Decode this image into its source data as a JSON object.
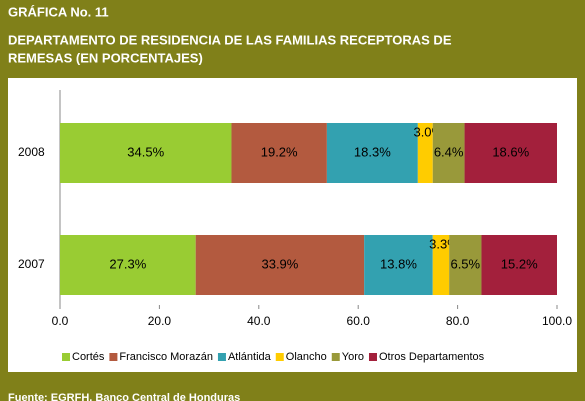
{
  "chart_data": {
    "type": "stacked_bar_horizontal",
    "title_lines": [
      "GRÁFICA No. 11",
      "DEPARTAMENTO DE RESIDENCIA DE LAS FAMILIAS RECEPTORAS DE",
      "REMESAS (EN PORCENTAJES)"
    ],
    "source": "Fuente: EGRFH, Banco Central de Honduras",
    "categories": [
      "2008",
      "2007"
    ],
    "series": [
      {
        "name": "Cortés",
        "color": "#99cc33",
        "values": [
          34.5,
          27.3
        ],
        "value_labels": [
          "34.5%",
          "27.3%"
        ]
      },
      {
        "name": "Francisco Morazán",
        "color": "#b35a3f",
        "values": [
          19.2,
          33.9
        ],
        "value_labels": [
          "19.2%",
          "33.9%"
        ]
      },
      {
        "name": "Atlántida",
        "color": "#33a1b0",
        "values": [
          18.3,
          13.8
        ],
        "value_labels": [
          "18.3%",
          "13.8%"
        ]
      },
      {
        "name": "Olancho",
        "color": "#ffcc00",
        "values": [
          3.0,
          3.3
        ],
        "value_labels": [
          "3.0%",
          "3.3%"
        ]
      },
      {
        "name": "Yoro",
        "color": "#99993a",
        "values": [
          6.4,
          6.5
        ],
        "value_labels": [
          "6.4%",
          "6.5%"
        ]
      },
      {
        "name": "Otros Departamentos",
        "color": "#a3203c",
        "values": [
          18.6,
          15.2
        ],
        "value_labels": [
          "18.6%",
          "15.2%"
        ]
      }
    ],
    "xlim": [
      0,
      100
    ],
    "xticks": [
      {
        "value": 0,
        "label": "0.0"
      },
      {
        "value": 20,
        "label": "20.0"
      },
      {
        "value": 40,
        "label": "40.0"
      },
      {
        "value": 60,
        "label": "60.0"
      },
      {
        "value": 80,
        "label": "80.0"
      },
      {
        "value": 100,
        "label": "100.0"
      }
    ],
    "legend": "bottom"
  }
}
